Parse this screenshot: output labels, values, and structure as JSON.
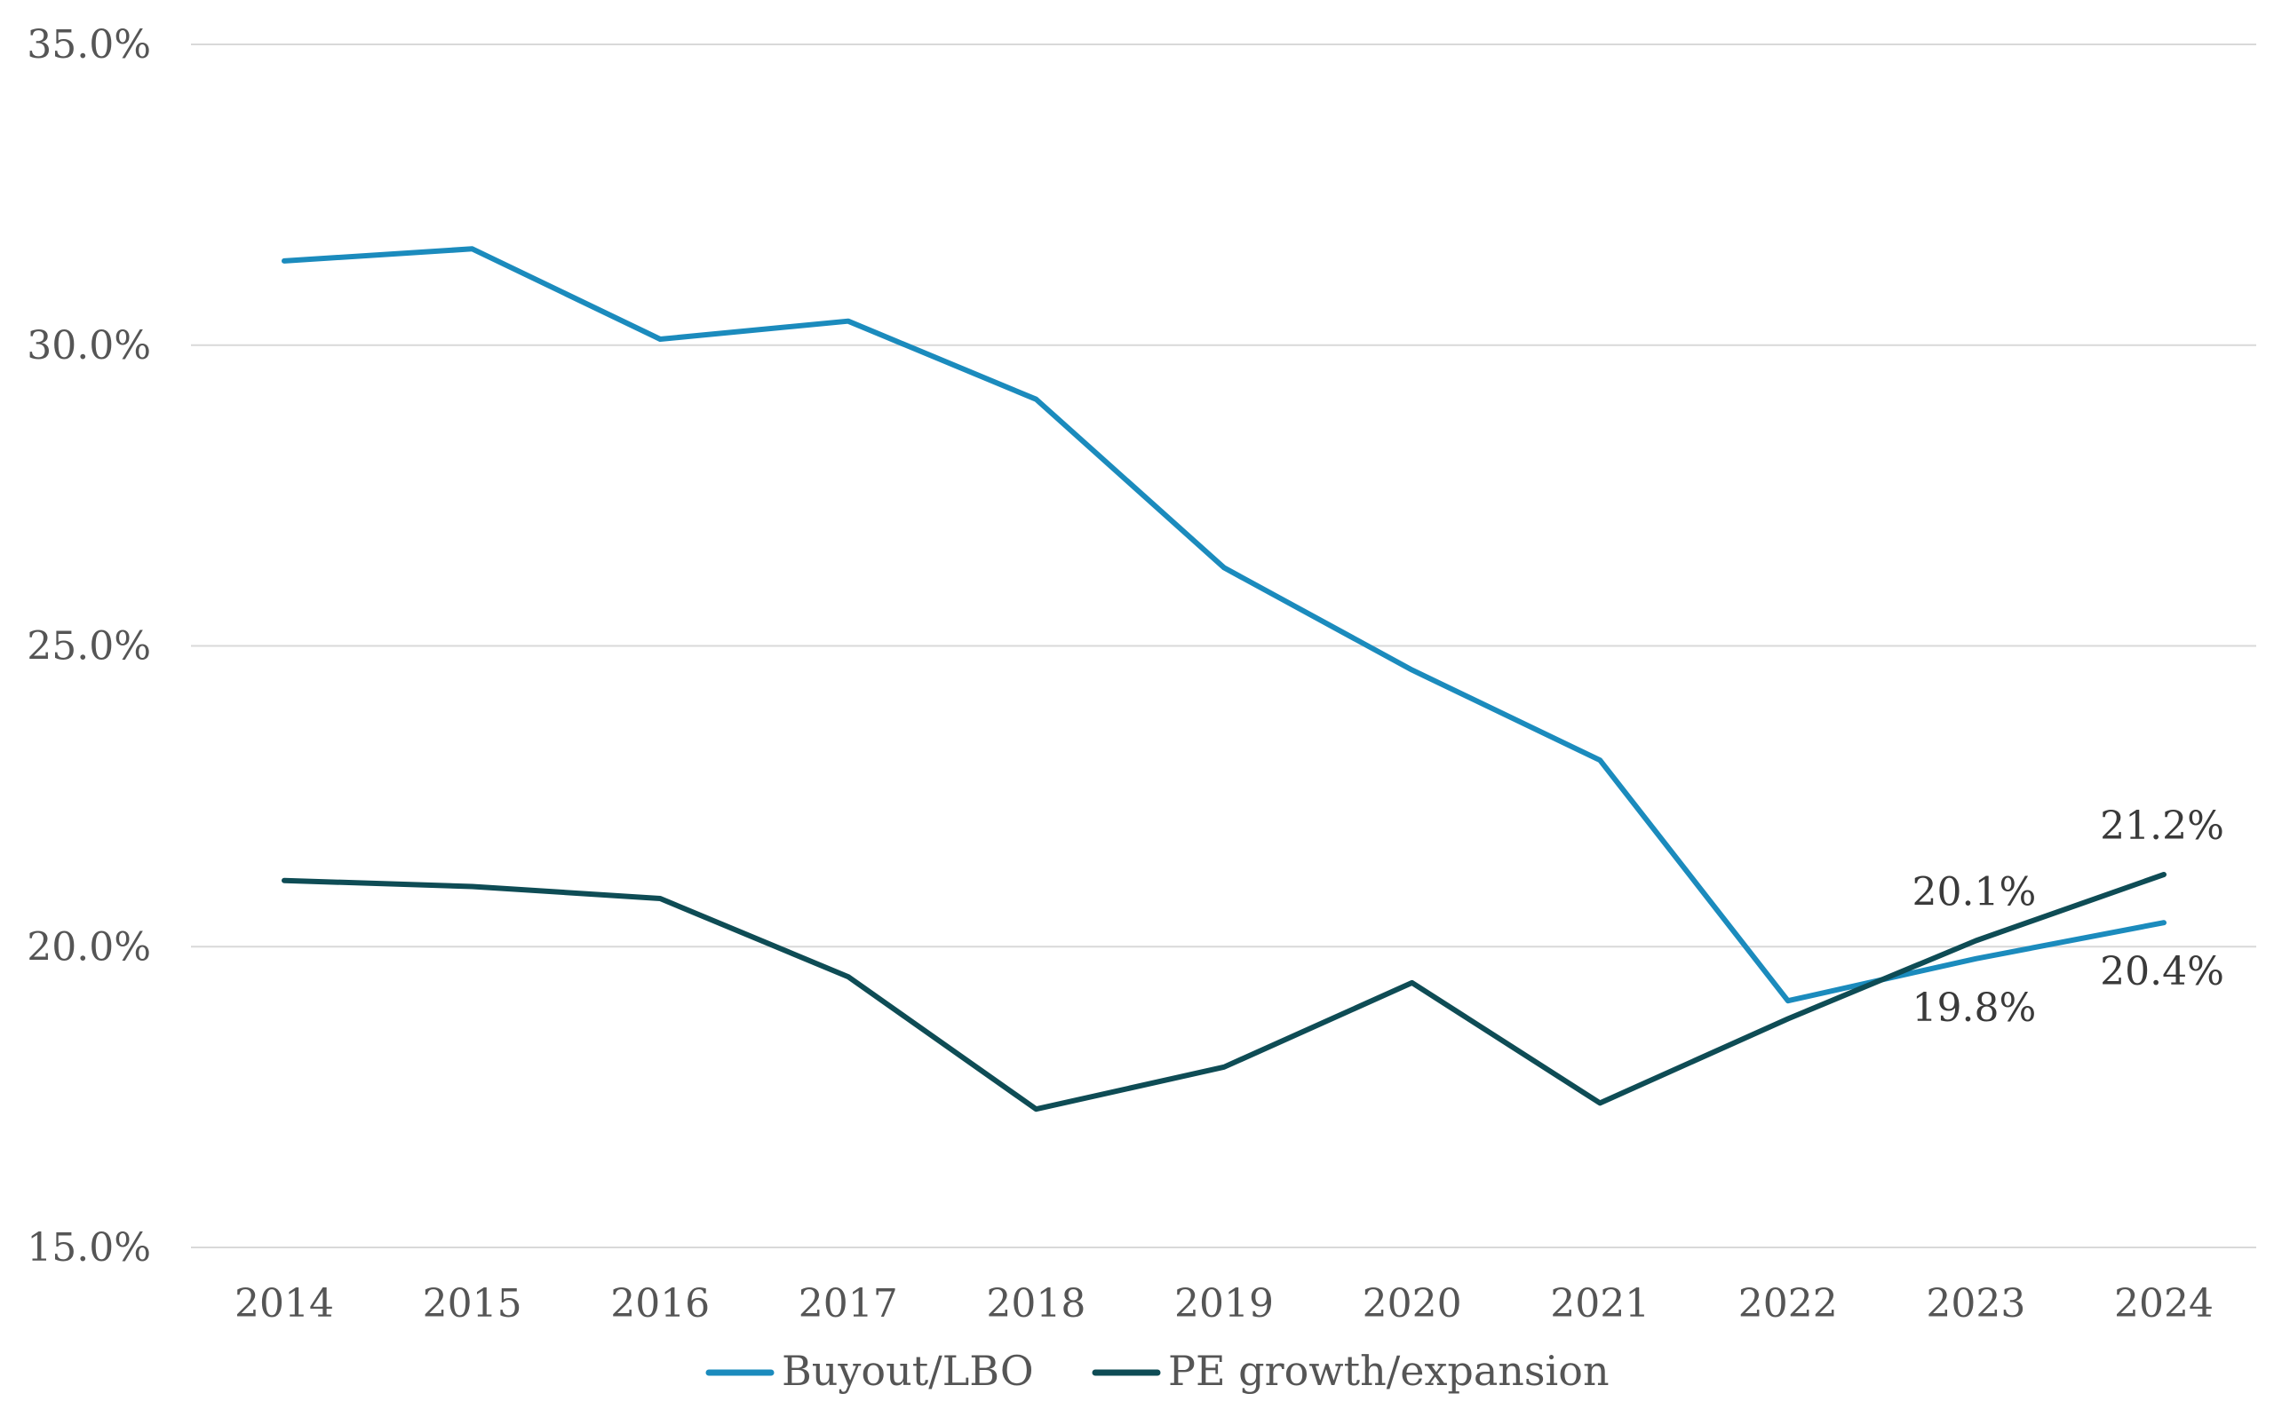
{
  "chart_data": {
    "type": "line",
    "title": "",
    "xlabel": "",
    "ylabel": "",
    "x": [
      "2014",
      "2015",
      "2016",
      "2017",
      "2018",
      "2019",
      "2020",
      "2021",
      "2022",
      "2023",
      "2024"
    ],
    "ylim": [
      15.0,
      35.0
    ],
    "yticks": [
      15.0,
      20.0,
      25.0,
      30.0,
      35.0
    ],
    "ytick_labels": [
      "15.0%",
      "20.0%",
      "25.0%",
      "30.0%",
      "35.0%"
    ],
    "grid": true,
    "legend_position": "bottom",
    "series": [
      {
        "name": "Buyout/LBO",
        "color": "#1b8bbd",
        "values": [
          31.4,
          31.6,
          30.1,
          30.4,
          29.1,
          26.3,
          24.6,
          23.1,
          19.1,
          19.8,
          20.4
        ]
      },
      {
        "name": "PE growth/expansion",
        "color": "#0e4c55",
        "values": [
          21.1,
          21.0,
          20.8,
          19.5,
          17.3,
          18.0,
          19.4,
          17.4,
          18.8,
          20.1,
          21.2
        ]
      }
    ],
    "data_labels": [
      {
        "series": 0,
        "index": 9,
        "text": "19.8%",
        "position": "below"
      },
      {
        "series": 0,
        "index": 10,
        "text": "20.4%",
        "position": "below"
      },
      {
        "series": 1,
        "index": 9,
        "text": "20.1%",
        "position": "above"
      },
      {
        "series": 1,
        "index": 10,
        "text": "21.2%",
        "position": "above"
      }
    ]
  }
}
